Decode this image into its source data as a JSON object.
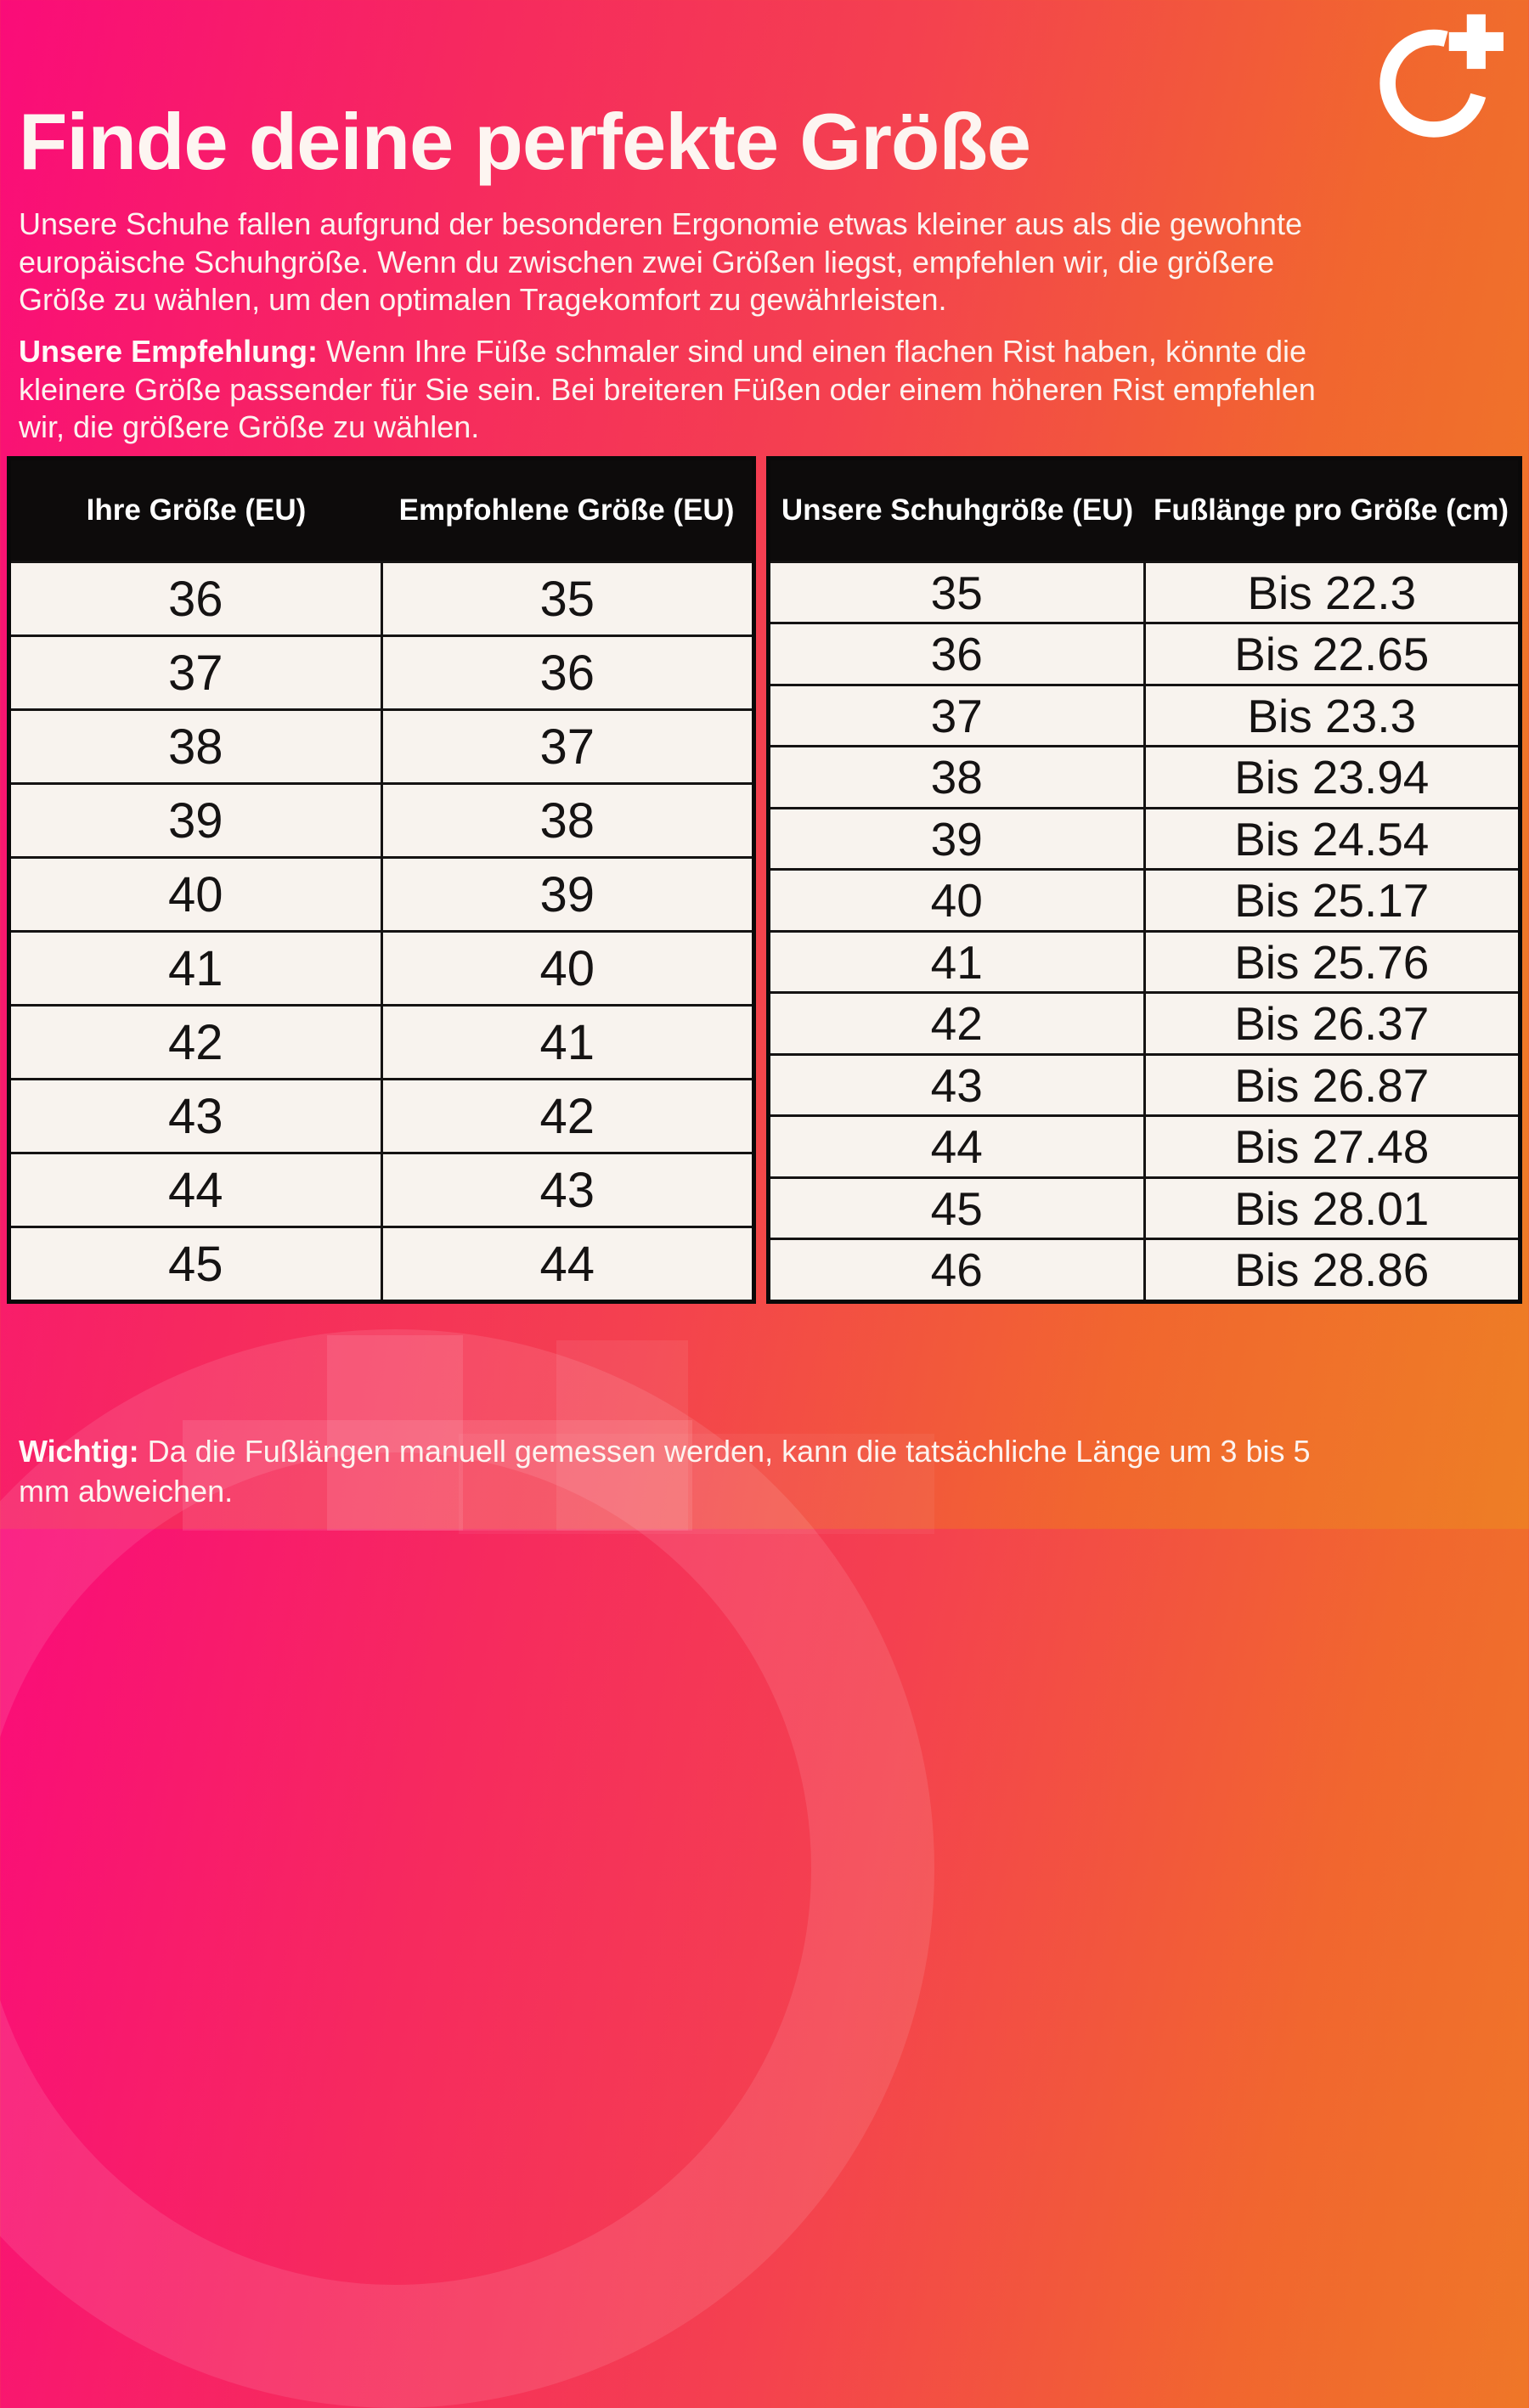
{
  "header": {
    "title": "Finde deine perfekte Größe",
    "intro": "Unsere Schuhe fallen aufgrund der besonderen Ergonomie etwas kleiner aus als die gewohnte europäische Schuhgröße. Wenn du zwischen zwei Größen liegst, empfehlen wir, die größere Größe zu wählen, um den optimalen Tragekomfort zu gewährleisten."
  },
  "recommendation": {
    "label": "Unsere Empfehlung:",
    "text": " Wenn Ihre Füße schmaler sind und einen flachen Rist haben, könnte die kleinere Größe passender für Sie sein. Bei breiteren Füßen oder einem höheren Rist empfehlen wir, die größere Größe zu wählen."
  },
  "size_table": {
    "headers": [
      "Ihre Größe (EU)",
      "Empfohlene Größe (EU)"
    ],
    "rows": [
      [
        "36",
        "35"
      ],
      [
        "37",
        "36"
      ],
      [
        "38",
        "37"
      ],
      [
        "39",
        "38"
      ],
      [
        "40",
        "39"
      ],
      [
        "41",
        "40"
      ],
      [
        "42",
        "41"
      ],
      [
        "43",
        "42"
      ],
      [
        "44",
        "43"
      ],
      [
        "45",
        "44"
      ]
    ]
  },
  "foot_length_table": {
    "headers": [
      "Unsere Schuhgröße (EU)",
      "Fußlänge pro Größe (cm)"
    ],
    "rows": [
      [
        "35",
        "Bis 22.3"
      ],
      [
        "36",
        "Bis 22.65"
      ],
      [
        "37",
        "Bis 23.3"
      ],
      [
        "38",
        "Bis 23.94"
      ],
      [
        "39",
        "Bis 24.54"
      ],
      [
        "40",
        "Bis 25.17"
      ],
      [
        "41",
        "Bis 25.76"
      ],
      [
        "42",
        "Bis 26.37"
      ],
      [
        "43",
        "Bis 26.87"
      ],
      [
        "44",
        "Bis 27.48"
      ],
      [
        "45",
        "Bis 28.01"
      ],
      [
        "46",
        "Bis 28.86"
      ]
    ]
  },
  "note": {
    "label": "Wichtig:",
    "text": " Da die Fußlängen manuell gemessen werden, kann die tatsächliche Länge um 3 bis 5 mm abweichen."
  },
  "colors": {
    "gradient_start": "#fa0c79",
    "gradient_mid": "#f4414f",
    "gradient_end": "#ee7e25",
    "table_header_bg": "#0d0b0b",
    "cell_bg": "#f8f3ee",
    "text_light": "#fdf5f1"
  }
}
